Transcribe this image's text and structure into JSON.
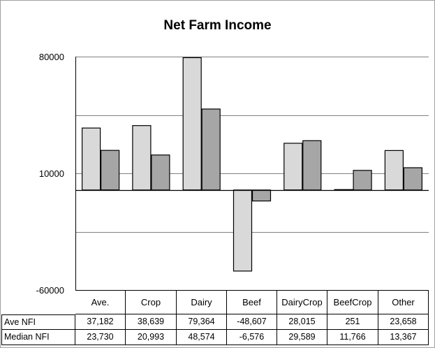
{
  "chart_data": {
    "type": "bar",
    "title": "Net Farm Income",
    "categories": [
      "Ave.",
      "Crop",
      "Dairy",
      "Beef",
      "Dairy Crop",
      "Beef Crop",
      "Other"
    ],
    "category_lines": [
      [
        "Ave."
      ],
      [
        "Crop"
      ],
      [
        "Dairy"
      ],
      [
        "Beef"
      ],
      [
        "Dairy",
        "Crop"
      ],
      [
        "Beef",
        "Crop"
      ],
      [
        "Other"
      ]
    ],
    "series": [
      {
        "name": "Ave NFI",
        "values": [
          37182,
          38639,
          79364,
          -48607,
          28015,
          251,
          23658
        ],
        "labels": [
          "37,182",
          "38,639",
          "79,364",
          "-48,607",
          "28,015",
          "251",
          "23,658"
        ],
        "color": "#d9d9d9"
      },
      {
        "name": "Median NFI",
        "values": [
          23730,
          20993,
          48574,
          -6576,
          29589,
          11766,
          13367
        ],
        "labels": [
          "23,730",
          "20,993",
          "48,574",
          "-6,576",
          "29,589",
          "11,766",
          "13,367"
        ],
        "color": "#a6a6a6"
      }
    ],
    "ylim": [
      -60000,
      80000
    ],
    "yticks": [
      80000,
      10000,
      -60000
    ],
    "ytick_labels": [
      "80000",
      "10000",
      "-60000"
    ],
    "gridlines": [
      45000,
      -25000
    ],
    "grid": true,
    "legend": "data-table",
    "xlabel": "",
    "ylabel": ""
  }
}
